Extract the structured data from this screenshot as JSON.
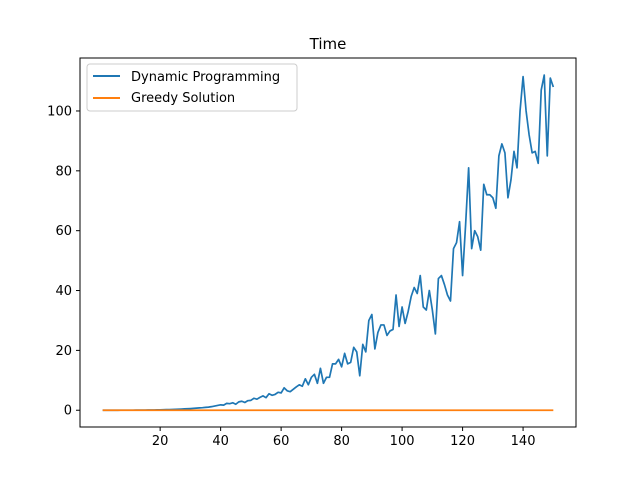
{
  "chart_data": {
    "type": "line",
    "title": "Time",
    "xlabel": "",
    "ylabel": "",
    "xlim": [
      -6.5,
      157.5
    ],
    "ylim": [
      -5.6,
      117.7
    ],
    "xticks": [
      20,
      40,
      60,
      80,
      100,
      120,
      140
    ],
    "yticks": [
      0,
      20,
      40,
      60,
      80,
      100
    ],
    "grid": false,
    "legend_position": "top-left",
    "x": [
      1,
      2,
      3,
      4,
      5,
      6,
      7,
      8,
      9,
      10,
      11,
      12,
      13,
      14,
      15,
      16,
      17,
      18,
      19,
      20,
      21,
      22,
      23,
      24,
      25,
      26,
      27,
      28,
      29,
      30,
      31,
      32,
      33,
      34,
      35,
      36,
      37,
      38,
      39,
      40,
      41,
      42,
      43,
      44,
      45,
      46,
      47,
      48,
      49,
      50,
      51,
      52,
      53,
      54,
      55,
      56,
      57,
      58,
      59,
      60,
      61,
      62,
      63,
      64,
      65,
      66,
      67,
      68,
      69,
      70,
      71,
      72,
      73,
      74,
      75,
      76,
      77,
      78,
      79,
      80,
      81,
      82,
      83,
      84,
      85,
      86,
      87,
      88,
      89,
      90,
      91,
      92,
      93,
      94,
      95,
      96,
      97,
      98,
      99,
      100,
      101,
      102,
      103,
      104,
      105,
      106,
      107,
      108,
      109,
      110,
      111,
      112,
      113,
      114,
      115,
      116,
      117,
      118,
      119,
      120,
      121,
      122,
      123,
      124,
      125,
      126,
      127,
      128,
      129,
      130,
      131,
      132,
      133,
      134,
      135,
      136,
      137,
      138,
      139,
      140,
      141,
      142,
      143,
      144,
      145,
      146,
      147,
      148,
      149,
      150
    ],
    "series": [
      {
        "name": "Dynamic Programming",
        "color": "#1f77b4",
        "values": [
          0.0,
          0.0,
          0.0,
          0.0,
          0.0,
          0.0,
          0.01,
          0.01,
          0.01,
          0.02,
          0.02,
          0.03,
          0.04,
          0.05,
          0.06,
          0.07,
          0.09,
          0.1,
          0.12,
          0.15,
          0.17,
          0.2,
          0.23,
          0.27,
          0.3,
          0.35,
          0.4,
          0.45,
          0.5,
          0.55,
          0.62,
          0.7,
          0.8,
          0.85,
          0.95,
          1.05,
          1.2,
          1.4,
          1.6,
          1.8,
          1.7,
          2.3,
          2.2,
          2.5,
          2.0,
          2.8,
          3.0,
          2.6,
          3.2,
          3.3,
          4.0,
          3.7,
          4.3,
          4.8,
          4.2,
          5.5,
          5.0,
          5.3,
          6.0,
          5.8,
          7.5,
          6.5,
          6.2,
          7.0,
          7.8,
          8.5,
          8.0,
          10.5,
          8.5,
          11.0,
          12.0,
          9.0,
          14.0,
          9.0,
          11.0,
          11.0,
          15.5,
          15.5,
          17.0,
          14.5,
          19.0,
          15.5,
          16.0,
          21.0,
          19.5,
          11.5,
          22.0,
          19.5,
          30.0,
          32.0,
          20.5,
          26.0,
          28.5,
          28.5,
          25.0,
          26.5,
          27.0,
          38.5,
          28.0,
          34.5,
          29.0,
          33.0,
          38.0,
          41.0,
          39.0,
          45.0,
          34.5,
          33.5,
          40.0,
          33.5,
          25.5,
          44.0,
          45.0,
          42.0,
          38.5,
          36.5,
          54.0,
          56.0,
          63.0,
          45.0,
          62.0,
          81.0,
          54.0,
          60.0,
          58.0,
          53.5,
          75.5,
          72.0,
          72.0,
          71.0,
          67.5,
          85.0,
          89.0,
          86.0,
          71.0,
          77.0,
          86.5,
          81.0,
          100.0,
          111.5,
          100.0,
          92.0,
          86.0,
          86.5,
          82.5,
          107.0,
          112.0,
          85.0,
          111.0,
          108.0
        ]
      },
      {
        "name": "Greedy Solution",
        "color": "#ff7f0e",
        "values": [
          0.0,
          0.0,
          0.0,
          0.0,
          0.0,
          0.0,
          0.0,
          0.0,
          0.0,
          0.0,
          0.0,
          0.0,
          0.0,
          0.0,
          0.0,
          0.0,
          0.0,
          0.0,
          0.0,
          0.0,
          0.0,
          0.0,
          0.0,
          0.0,
          0.0,
          0.0,
          0.0,
          0.0,
          0.0,
          0.0,
          0.0,
          0.0,
          0.0,
          0.0,
          0.0,
          0.0,
          0.0,
          0.0,
          0.0,
          0.0,
          0.0,
          0.0,
          0.0,
          0.0,
          0.0,
          0.0,
          0.0,
          0.0,
          0.0,
          0.0,
          0.0,
          0.0,
          0.0,
          0.0,
          0.0,
          0.0,
          0.0,
          0.0,
          0.0,
          0.0,
          0.0,
          0.0,
          0.0,
          0.0,
          0.0,
          0.0,
          0.0,
          0.0,
          0.0,
          0.0,
          0.0,
          0.0,
          0.0,
          0.0,
          0.0,
          0.0,
          0.0,
          0.0,
          0.0,
          0.0,
          0.0,
          0.0,
          0.0,
          0.0,
          0.0,
          0.0,
          0.0,
          0.0,
          0.0,
          0.0,
          0.0,
          0.0,
          0.0,
          0.0,
          0.0,
          0.0,
          0.0,
          0.0,
          0.0,
          0.0,
          0.0,
          0.0,
          0.0,
          0.0,
          0.0,
          0.0,
          0.0,
          0.0,
          0.0,
          0.0,
          0.0,
          0.0,
          0.0,
          0.0,
          0.0,
          0.0,
          0.0,
          0.0,
          0.0,
          0.0,
          0.0,
          0.0,
          0.0,
          0.0,
          0.0,
          0.0,
          0.0,
          0.0,
          0.0,
          0.0,
          0.0,
          0.0,
          0.0,
          0.0,
          0.0,
          0.0,
          0.0,
          0.0,
          0.0,
          0.0,
          0.0,
          0.0,
          0.0,
          0.0,
          0.0,
          0.0,
          0.0,
          0.0,
          0.0,
          0.0
        ]
      }
    ]
  }
}
